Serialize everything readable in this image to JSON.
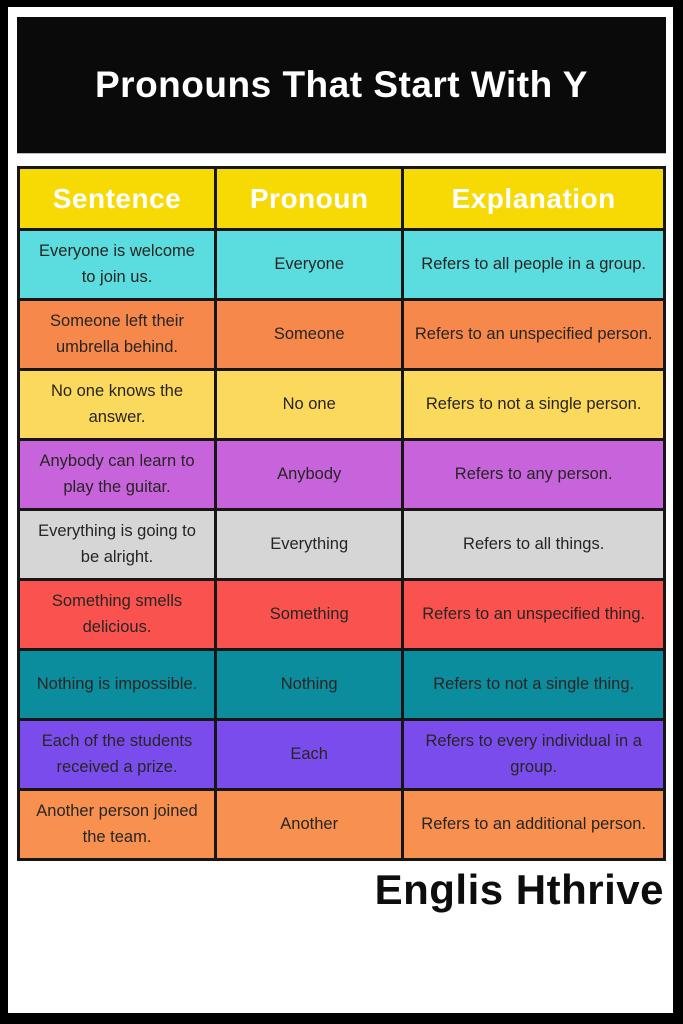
{
  "page": {
    "title": "Pronouns That Start With Y",
    "footer_brand": "Englis Hthrive"
  },
  "colors": {
    "frame": "#000000",
    "title_band_bg": "#0a0a0a",
    "title_text": "#ffffff",
    "header_bg": "#f7d903",
    "header_text": "#ffffff",
    "cell_text": "#272523",
    "table_border": "#161616"
  },
  "table": {
    "headers": [
      "Sentence",
      "Pronoun",
      "Explanation"
    ],
    "rows": [
      {
        "sentence": "Everyone is welcome to join us.",
        "pronoun": "Everyone",
        "explanation": "Refers to all people in a group.",
        "bg": "#5bdcdf"
      },
      {
        "sentence": "Someone left their umbrella behind.",
        "pronoun": "Someone",
        "explanation": "Refers to an unspecified person.",
        "bg": "#f5884a"
      },
      {
        "sentence": "No one knows the answer.",
        "pronoun": "No one",
        "explanation": "Refers to not a single person.",
        "bg": "#fbd95d"
      },
      {
        "sentence": "Anybody can learn to play the guitar.",
        "pronoun": "Anybody",
        "explanation": "Refers to any person.",
        "bg": "#c764dc"
      },
      {
        "sentence": "Everything is going to be alright.",
        "pronoun": "Everything",
        "explanation": "Refers to all things.",
        "bg": "#d6d6d6"
      },
      {
        "sentence": "Something smells delicious.",
        "pronoun": "Something",
        "explanation": "Refers to an unspecified thing.",
        "bg": "#fa534f"
      },
      {
        "sentence": "Nothing is impossible.",
        "pronoun": "Nothing",
        "explanation": "Refers to not a single thing.",
        "bg": "#0c8d9e"
      },
      {
        "sentence": "Each of the students received a prize.",
        "pronoun": "Each",
        "explanation": "Refers to every individual in a group.",
        "bg": "#7b4cec"
      },
      {
        "sentence": "Another person joined the team.",
        "pronoun": "Another",
        "explanation": "Refers to an additional person.",
        "bg": "#f89150"
      }
    ]
  }
}
